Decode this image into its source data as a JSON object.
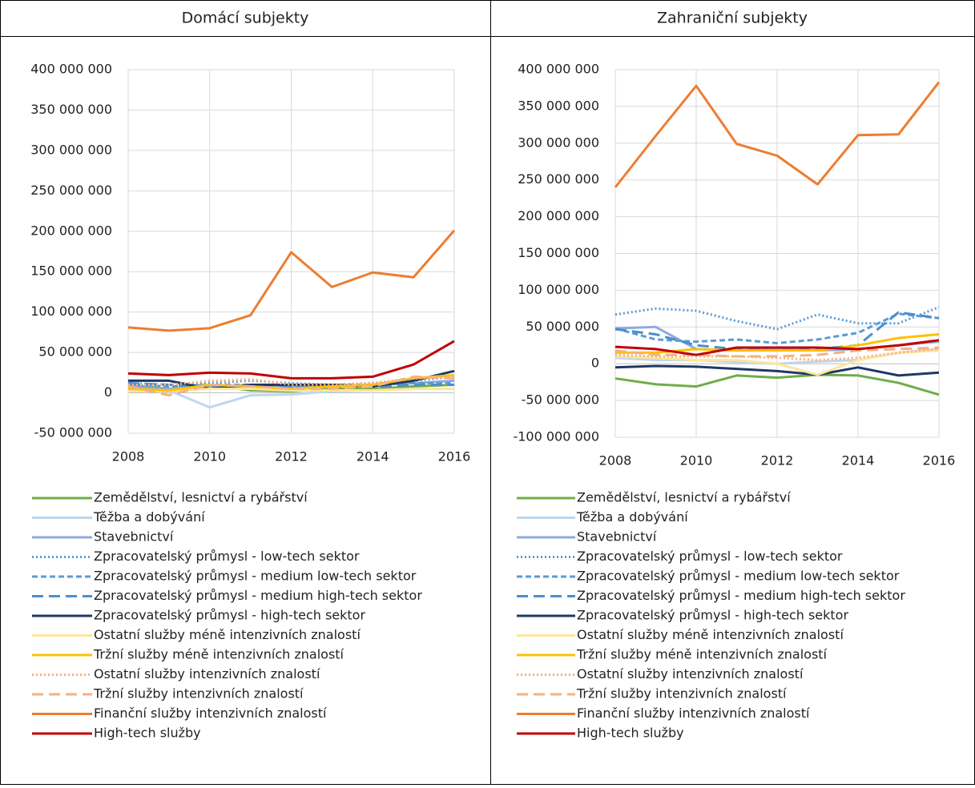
{
  "chart_data": [
    {
      "type": "line",
      "title": "Domácí subjekty",
      "x": [
        2008,
        2009,
        2010,
        2011,
        2012,
        2013,
        2014,
        2015,
        2016
      ],
      "xlim": [
        2008,
        2016
      ],
      "xticks": [
        2008,
        2010,
        2012,
        2014,
        2016
      ],
      "ylim": [
        -50000000,
        400000000
      ],
      "yticks": [
        {
          "value": -50000000,
          "label": "-50 000 000"
        },
        0,
        {
          "value": 50000000,
          "label": "50 000 000"
        },
        {
          "value": 100000000,
          "label": "100 000 000"
        },
        {
          "value": 150000000,
          "label": "150 000 000"
        },
        {
          "value": 200000000,
          "label": "200 000 000"
        },
        {
          "value": 250000000,
          "label": "250 000 000"
        },
        {
          "value": 300000000,
          "label": "300 000 000"
        },
        {
          "value": 350000000,
          "label": "350 000 000"
        },
        {
          "value": 400000000,
          "label": "400 000 000"
        }
      ],
      "grid": true,
      "series": [
        {
          "name": "Zemědělství, lesnictví a rybářství",
          "color": "#70ad47",
          "dash": "solid",
          "values": [
            10000000,
            5000000,
            10000000,
            3000000,
            2000000,
            5000000,
            5000000,
            8000000,
            10000000
          ]
        },
        {
          "name": "Těžba a dobývání",
          "color": "#bdd7ee",
          "dash": "solid",
          "values": [
            5000000,
            3000000,
            -18000000,
            -3000000,
            -2000000,
            2000000,
            3000000,
            5000000,
            5000000
          ]
        },
        {
          "name": "Stavebnictví",
          "color": "#8faadc",
          "dash": "solid",
          "values": [
            8000000,
            5000000,
            8000000,
            8000000,
            8000000,
            8000000,
            10000000,
            12000000,
            15000000
          ]
        },
        {
          "name": "Zpracovatelský průmysl - low-tech sektor",
          "color": "#5b9bd5",
          "dash": "dot",
          "values": [
            12000000,
            10000000,
            12000000,
            15000000,
            12000000,
            10000000,
            12000000,
            15000000,
            20000000
          ]
        },
        {
          "name": "Zpracovatelský průmysl - medium low-tech sektor",
          "color": "#5b9bd5",
          "dash": "dash",
          "values": [
            10000000,
            8000000,
            10000000,
            10000000,
            8000000,
            10000000,
            10000000,
            12000000,
            12000000
          ]
        },
        {
          "name": "Zpracovatelský průmysl - medium high-tech sektor",
          "color": "#4a8fcf",
          "dash": "longdash",
          "values": [
            12000000,
            10000000,
            8000000,
            8000000,
            8000000,
            8000000,
            8000000,
            10000000,
            10000000
          ]
        },
        {
          "name": "Zpracovatelský průmysl - high-tech sektor",
          "color": "#1f3864",
          "dash": "solid",
          "values": [
            15000000,
            15000000,
            5000000,
            10000000,
            10000000,
            10000000,
            8000000,
            15000000,
            27000000
          ]
        },
        {
          "name": "Ostatní služby méně intenzivních znalostí",
          "color": "#ffe699",
          "dash": "solid",
          "values": [
            2000000,
            2000000,
            5000000,
            5000000,
            3000000,
            3000000,
            3000000,
            5000000,
            5000000
          ]
        },
        {
          "name": "Tržní služby méně intenzivních znalostí",
          "color": "#ffc000",
          "dash": "solid",
          "values": [
            5000000,
            3000000,
            10000000,
            8000000,
            5000000,
            8000000,
            10000000,
            18000000,
            22000000
          ]
        },
        {
          "name": "Ostatní služby intenzivních znalostí",
          "color": "#f4b183",
          "dash": "dot",
          "values": [
            10000000,
            10000000,
            15000000,
            17000000,
            10000000,
            10000000,
            12000000,
            18000000,
            20000000
          ]
        },
        {
          "name": "Tržní služby intenzivních znalostí",
          "color": "#f4b183",
          "dash": "longdash",
          "values": [
            8000000,
            -3000000,
            10000000,
            8000000,
            5000000,
            5000000,
            8000000,
            20000000,
            18000000
          ]
        },
        {
          "name": "Finanční služby intenzivních znalostí",
          "color": "#ed7d31",
          "dash": "solid",
          "values": [
            81000000,
            77000000,
            80000000,
            96000000,
            174000000,
            131000000,
            149000000,
            143000000,
            201000000
          ]
        },
        {
          "name": "High-tech služby",
          "color": "#c00000",
          "dash": "solid",
          "values": [
            24000000,
            22000000,
            25000000,
            24000000,
            18000000,
            18000000,
            20000000,
            35000000,
            64000000
          ]
        }
      ]
    },
    {
      "type": "line",
      "title": "Zahraniční subjekty",
      "x": [
        2008,
        2009,
        2010,
        2011,
        2012,
        2013,
        2014,
        2015,
        2016
      ],
      "xlim": [
        2008,
        2016
      ],
      "xticks": [
        2008,
        2010,
        2012,
        2014,
        2016
      ],
      "ylim": [
        -100000000,
        400000000
      ],
      "yticks": [
        {
          "value": -100000000,
          "label": "-100 000 000"
        },
        {
          "value": -50000000,
          "label": "-50 000 000"
        },
        0,
        {
          "value": 50000000,
          "label": "50 000 000"
        },
        {
          "value": 100000000,
          "label": "100 000 000"
        },
        {
          "value": 150000000,
          "label": "150 000 000"
        },
        {
          "value": 200000000,
          "label": "200 000 000"
        },
        {
          "value": 250000000,
          "label": "250 000 000"
        },
        {
          "value": 300000000,
          "label": "300 000 000"
        },
        {
          "value": 350000000,
          "label": "350 000 000"
        },
        {
          "value": 400000000,
          "label": "400 000 000"
        }
      ],
      "grid": true,
      "series": [
        {
          "name": "Zemědělství, lesnictví a rybářství",
          "color": "#70ad47",
          "dash": "solid",
          "values": [
            -20000000,
            -28000000,
            -31000000,
            -16000000,
            -19000000,
            -15000000,
            -16000000,
            -26000000,
            -42000000
          ]
        },
        {
          "name": "Těžba a dobývání",
          "color": "#bdd7ee",
          "dash": "solid",
          "values": [
            8000000,
            5000000,
            5000000,
            2000000,
            0,
            3000000,
            5000000,
            15000000,
            20000000
          ]
        },
        {
          "name": "Stavebnictví",
          "color": "#8faadc",
          "dash": "solid",
          "values": [
            48000000,
            50000000,
            20000000,
            18000000,
            20000000,
            18000000,
            20000000,
            25000000,
            30000000
          ]
        },
        {
          "name": "Zpracovatelský průmysl - low-tech sektor",
          "color": "#5b9bd5",
          "dash": "dot",
          "values": [
            67000000,
            75000000,
            72000000,
            58000000,
            47000000,
            67000000,
            55000000,
            55000000,
            77000000
          ]
        },
        {
          "name": "Zpracovatelský průmysl - medium low-tech sektor",
          "color": "#5b9bd5",
          "dash": "dash",
          "values": [
            48000000,
            33000000,
            30000000,
            33000000,
            28000000,
            33000000,
            42000000,
            68000000,
            62000000
          ]
        },
        {
          "name": "Zpracovatelský průmysl - medium high-tech sektor",
          "color": "#4a8fcf",
          "dash": "longdash",
          "values": [
            47000000,
            40000000,
            25000000,
            20000000,
            18000000,
            20000000,
            25000000,
            70000000,
            62000000
          ]
        },
        {
          "name": "Zpracovatelský průmysl - high-tech sektor",
          "color": "#1f3864",
          "dash": "solid",
          "values": [
            -5000000,
            -3000000,
            -4000000,
            -7000000,
            -10000000,
            -15000000,
            -5000000,
            -16000000,
            -12000000
          ]
        },
        {
          "name": "Ostatní služby méně intenzivních znalostí",
          "color": "#ffe699",
          "dash": "solid",
          "values": [
            10000000,
            8000000,
            5000000,
            5000000,
            0,
            -15000000,
            5000000,
            15000000,
            18000000
          ]
        },
        {
          "name": "Tržní služby méně intenzivních znalostí",
          "color": "#ffc000",
          "dash": "solid",
          "values": [
            15000000,
            15000000,
            20000000,
            18000000,
            18000000,
            18000000,
            25000000,
            35000000,
            40000000
          ]
        },
        {
          "name": "Ostatní služby intenzivních znalostí",
          "color": "#f4b183",
          "dash": "dot",
          "values": [
            12000000,
            10000000,
            10000000,
            10000000,
            8000000,
            5000000,
            8000000,
            15000000,
            20000000
          ]
        },
        {
          "name": "Tržní služby intenzivních znalostí",
          "color": "#f4b183",
          "dash": "longdash",
          "values": [
            18000000,
            12000000,
            12000000,
            10000000,
            10000000,
            12000000,
            18000000,
            20000000,
            22000000
          ]
        },
        {
          "name": "Finanční služby intenzivních znalostí",
          "color": "#ed7d31",
          "dash": "solid",
          "values": [
            240000000,
            310000000,
            378000000,
            299000000,
            283000000,
            244000000,
            311000000,
            312000000,
            383000000
          ]
        },
        {
          "name": "High-tech služby",
          "color": "#c00000",
          "dash": "solid",
          "values": [
            23000000,
            20000000,
            12000000,
            22000000,
            22000000,
            22000000,
            20000000,
            25000000,
            32000000
          ]
        }
      ]
    }
  ]
}
